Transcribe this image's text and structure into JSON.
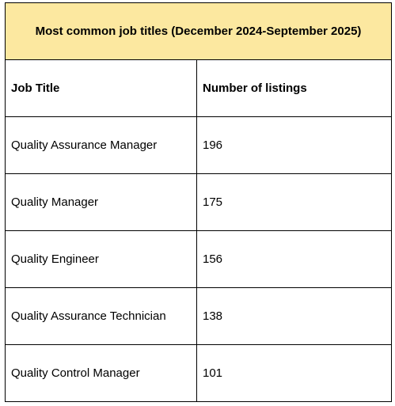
{
  "table": {
    "title": "Most common job titles (December 2024-September 2025)",
    "headers": {
      "job_title": "Job Title",
      "listings": "Number of listings"
    },
    "rows": [
      {
        "job_title": "Quality Assurance Manager",
        "listings": "196"
      },
      {
        "job_title": "Quality Manager",
        "listings": "175"
      },
      {
        "job_title": "Quality Engineer",
        "listings": "156"
      },
      {
        "job_title": "Quality Assurance Technician",
        "listings": "138"
      },
      {
        "job_title": "Quality Control Manager",
        "listings": "101"
      }
    ]
  },
  "colors": {
    "title_background": "#fce8a0",
    "border": "#000000",
    "text": "#000000"
  }
}
